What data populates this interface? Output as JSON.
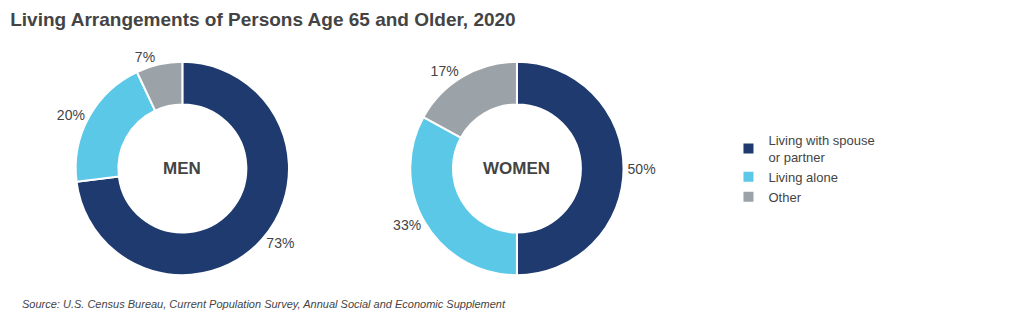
{
  "chart_data": {
    "type": "pie",
    "title": "Living Arrangements of Persons Age 65 and Older, 2020",
    "annotations": [
      "Source: U.S. Census Bureau, Current Population Survey, Annual Social and Economic Supplement"
    ],
    "categories": [
      "Living with spouse\nor partner",
      "Living alone",
      "Other"
    ],
    "colors": [
      "#1e3a6e",
      "#5bc8e8",
      "#9ca3a8"
    ],
    "series": [
      {
        "name": "MEN",
        "values": [
          73,
          20,
          7
        ],
        "value_labels": [
          "73%",
          "20%",
          "7%"
        ]
      },
      {
        "name": "WOMEN",
        "values": [
          50,
          33,
          17
        ],
        "value_labels": [
          "50%",
          "33%",
          "17%"
        ]
      }
    ],
    "data_labels": true,
    "legend": "right"
  }
}
